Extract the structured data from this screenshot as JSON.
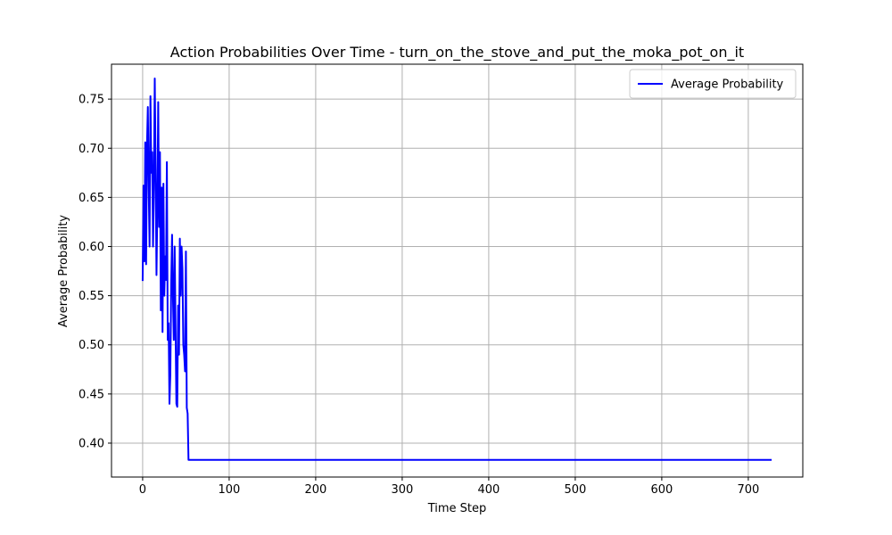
{
  "chart_data": {
    "type": "line",
    "title": "Action Probabilities Over Time - turn_on_the_stove_and_put_the_moka_pot_on_it",
    "xlabel": "Time Step",
    "ylabel": "Average Probability",
    "xlim": [
      -36,
      763
    ],
    "ylim": [
      0.3655,
      0.7855
    ],
    "xticks": [
      0,
      100,
      200,
      300,
      400,
      500,
      600,
      700
    ],
    "yticks": [
      0.4,
      0.45,
      0.5,
      0.55,
      0.6,
      0.65,
      0.7,
      0.75
    ],
    "xtick_labels": [
      "0",
      "100",
      "200",
      "300",
      "400",
      "500",
      "600",
      "700"
    ],
    "ytick_labels": [
      "0.40",
      "0.45",
      "0.50",
      "0.55",
      "0.60",
      "0.65",
      "0.70",
      "0.75"
    ],
    "grid": true,
    "legend_position": "top-right",
    "series": [
      {
        "name": "Average Probability",
        "color": "#0000ff",
        "x": [
          0,
          1,
          2,
          3,
          4,
          5,
          6,
          7,
          8,
          9,
          10,
          11,
          12,
          13,
          14,
          15,
          16,
          17,
          18,
          19,
          20,
          21,
          22,
          23,
          24,
          25,
          26,
          27,
          28,
          29,
          30,
          31,
          32,
          33,
          34,
          35,
          36,
          37,
          38,
          39,
          40,
          41,
          42,
          43,
          44,
          45,
          46,
          47,
          48,
          49,
          50,
          51,
          52,
          53,
          54,
          55,
          56,
          57,
          58,
          59,
          60,
          61,
          62,
          63,
          64,
          65,
          66,
          67,
          68,
          727
        ],
        "y": [
          0.565,
          0.662,
          0.585,
          0.706,
          0.582,
          0.702,
          0.742,
          0.66,
          0.6,
          0.753,
          0.675,
          0.696,
          0.6,
          0.66,
          0.771,
          0.68,
          0.571,
          0.64,
          0.747,
          0.62,
          0.696,
          0.535,
          0.66,
          0.513,
          0.664,
          0.55,
          0.59,
          0.566,
          0.686,
          0.505,
          0.522,
          0.44,
          0.47,
          0.562,
          0.612,
          0.55,
          0.505,
          0.6,
          0.52,
          0.44,
          0.437,
          0.54,
          0.49,
          0.608,
          0.55,
          0.6,
          0.577,
          0.5,
          0.49,
          0.473,
          0.595,
          0.436,
          0.43,
          0.383,
          0.383,
          0.383,
          0.383,
          0.383,
          0.383,
          0.383,
          0.383,
          0.383,
          0.383,
          0.383,
          0.383,
          0.383,
          0.383,
          0.383,
          0.383,
          0.383
        ]
      }
    ]
  }
}
